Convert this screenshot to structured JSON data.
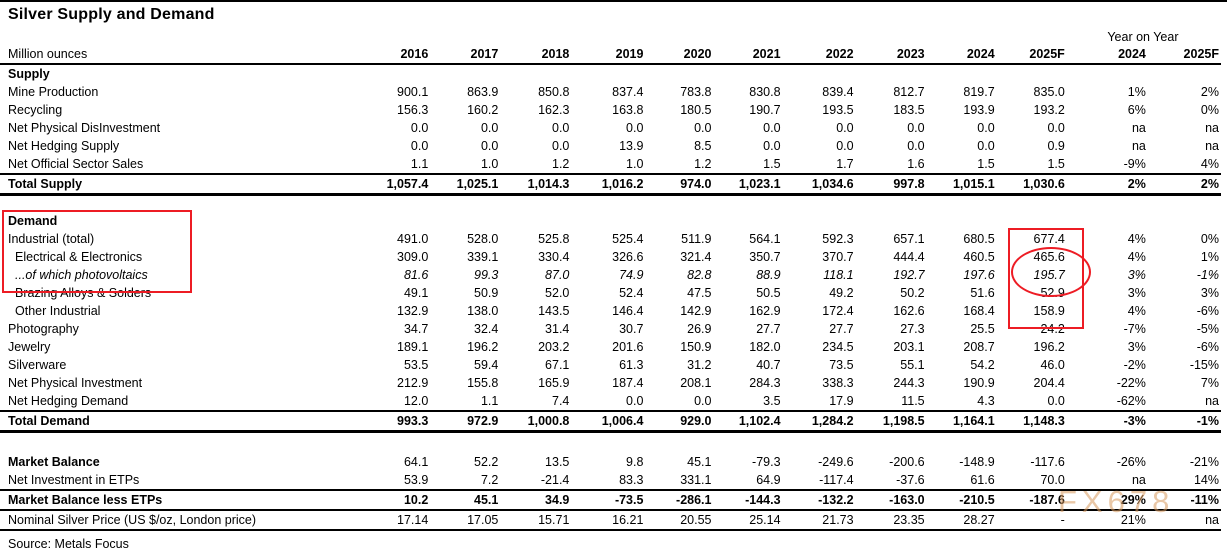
{
  "title": "Silver Supply and Demand",
  "unit_label": "Million ounces",
  "year_on_year_label": "Year on Year",
  "source": "Source: Metals Focus",
  "watermark": {
    "text": "FX678",
    "color": "#d89a5f"
  },
  "colors": {
    "annotation_red": "#ed1c24",
    "text": "#000000",
    "background": "#ffffff"
  },
  "chart_data": {
    "type": "table",
    "title": "Silver Supply and Demand",
    "unit": "Million ounces",
    "columns": [
      "2016",
      "2017",
      "2018",
      "2019",
      "2020",
      "2021",
      "2022",
      "2023",
      "2024",
      "2025F",
      "2024",
      "2025F"
    ],
    "column_groups": {
      "years": 10,
      "year_on_year": 2
    },
    "rows": [
      {
        "label": "Supply",
        "style": "header",
        "values": []
      },
      {
        "label": "Mine Production",
        "style": "normal",
        "values": [
          "900.1",
          "863.9",
          "850.8",
          "837.4",
          "783.8",
          "830.8",
          "839.4",
          "812.7",
          "819.7",
          "835.0",
          "1%",
          "2%"
        ]
      },
      {
        "label": "Recycling",
        "style": "normal",
        "values": [
          "156.3",
          "160.2",
          "162.3",
          "163.8",
          "180.5",
          "190.7",
          "193.5",
          "183.5",
          "193.9",
          "193.2",
          "6%",
          "0%"
        ]
      },
      {
        "label": "Net Physical DisInvestment",
        "style": "normal",
        "values": [
          "0.0",
          "0.0",
          "0.0",
          "0.0",
          "0.0",
          "0.0",
          "0.0",
          "0.0",
          "0.0",
          "0.0",
          "na",
          "na"
        ]
      },
      {
        "label": "Net Hedging Supply",
        "style": "normal",
        "values": [
          "0.0",
          "0.0",
          "0.0",
          "13.9",
          "8.5",
          "0.0",
          "0.0",
          "0.0",
          "0.0",
          "0.9",
          "na",
          "na"
        ]
      },
      {
        "label": "Net Official Sector Sales",
        "style": "normal",
        "values": [
          "1.1",
          "1.0",
          "1.2",
          "1.0",
          "1.2",
          "1.5",
          "1.7",
          "1.6",
          "1.5",
          "1.5",
          "-9%",
          "4%"
        ]
      },
      {
        "label": "Total Supply",
        "style": "total",
        "values": [
          "1,057.4",
          "1,025.1",
          "1,014.3",
          "1,016.2",
          "974.0",
          "1,023.1",
          "1,034.6",
          "997.8",
          "1,015.1",
          "1,030.6",
          "2%",
          "2%"
        ]
      },
      {
        "style": "spacer"
      },
      {
        "label": "Demand",
        "style": "header",
        "values": []
      },
      {
        "label": "Industrial (total)",
        "style": "normal",
        "values": [
          "491.0",
          "528.0",
          "525.8",
          "525.4",
          "511.9",
          "564.1",
          "592.3",
          "657.1",
          "680.5",
          "677.4",
          "4%",
          "0%"
        ]
      },
      {
        "label": "Electrical & Electronics",
        "style": "indent",
        "values": [
          "309.0",
          "339.1",
          "330.4",
          "326.6",
          "321.4",
          "350.7",
          "370.7",
          "444.4",
          "460.5",
          "465.6",
          "4%",
          "1%"
        ]
      },
      {
        "label": "...of which photovoltaics",
        "style": "italic",
        "values": [
          "81.6",
          "99.3",
          "87.0",
          "74.9",
          "82.8",
          "88.9",
          "118.1",
          "192.7",
          "197.6",
          "195.7",
          "3%",
          "-1%"
        ]
      },
      {
        "label": "Brazing Alloys & Solders",
        "style": "indent",
        "values": [
          "49.1",
          "50.9",
          "52.0",
          "52.4",
          "47.5",
          "50.5",
          "49.2",
          "50.2",
          "51.6",
          "52.9",
          "3%",
          "3%"
        ]
      },
      {
        "label": "Other Industrial",
        "style": "indent",
        "values": [
          "132.9",
          "138.0",
          "143.5",
          "146.4",
          "142.9",
          "162.9",
          "172.4",
          "162.6",
          "168.4",
          "158.9",
          "4%",
          "-6%"
        ]
      },
      {
        "label": "Photography",
        "style": "normal",
        "values": [
          "34.7",
          "32.4",
          "31.4",
          "30.7",
          "26.9",
          "27.7",
          "27.7",
          "27.3",
          "25.5",
          "24.2",
          "-7%",
          "-5%"
        ]
      },
      {
        "label": "Jewelry",
        "style": "normal",
        "values": [
          "189.1",
          "196.2",
          "203.2",
          "201.6",
          "150.9",
          "182.0",
          "234.5",
          "203.1",
          "208.7",
          "196.2",
          "3%",
          "-6%"
        ]
      },
      {
        "label": "Silverware",
        "style": "normal",
        "values": [
          "53.5",
          "59.4",
          "67.1",
          "61.3",
          "31.2",
          "40.7",
          "73.5",
          "55.1",
          "54.2",
          "46.0",
          "-2%",
          "-15%"
        ]
      },
      {
        "label": "Net Physical Investment",
        "style": "normal",
        "values": [
          "212.9",
          "155.8",
          "165.9",
          "187.4",
          "208.1",
          "284.3",
          "338.3",
          "244.3",
          "190.9",
          "204.4",
          "-22%",
          "7%"
        ]
      },
      {
        "label": "Net Hedging Demand",
        "style": "normal",
        "values": [
          "12.0",
          "1.1",
          "7.4",
          "0.0",
          "0.0",
          "3.5",
          "17.9",
          "11.5",
          "4.3",
          "0.0",
          "-62%",
          "na"
        ]
      },
      {
        "label": "Total Demand",
        "style": "total",
        "values": [
          "993.3",
          "972.9",
          "1,000.8",
          "1,006.4",
          "929.0",
          "1,102.4",
          "1,284.2",
          "1,198.5",
          "1,164.1",
          "1,148.3",
          "-3%",
          "-1%"
        ]
      },
      {
        "style": "spacer2"
      },
      {
        "label": "Market Balance",
        "style": "bold-label",
        "values": [
          "64.1",
          "52.2",
          "13.5",
          "9.8",
          "45.1",
          "-79.3",
          "-249.6",
          "-200.6",
          "-148.9",
          "-117.6",
          "-26%",
          "-21%"
        ]
      },
      {
        "label": "Net Investment in ETPs",
        "style": "normal",
        "values": [
          "53.9",
          "7.2",
          "-21.4",
          "83.3",
          "331.1",
          "64.9",
          "-117.4",
          "-37.6",
          "61.6",
          "70.0",
          "na",
          "14%"
        ]
      },
      {
        "label": "Market Balance less ETPs",
        "style": "total-mid",
        "values": [
          "10.2",
          "45.1",
          "34.9",
          "-73.5",
          "-286.1",
          "-144.3",
          "-132.2",
          "-163.0",
          "-210.5",
          "-187.6",
          "29%",
          "-11%"
        ]
      },
      {
        "label": "Nominal Silver Price (US $/oz, London price)",
        "style": "price",
        "values": [
          "17.14",
          "17.05",
          "15.71",
          "16.21",
          "20.55",
          "25.14",
          "21.73",
          "23.35",
          "28.27",
          "-",
          "21%",
          "na"
        ]
      }
    ]
  }
}
